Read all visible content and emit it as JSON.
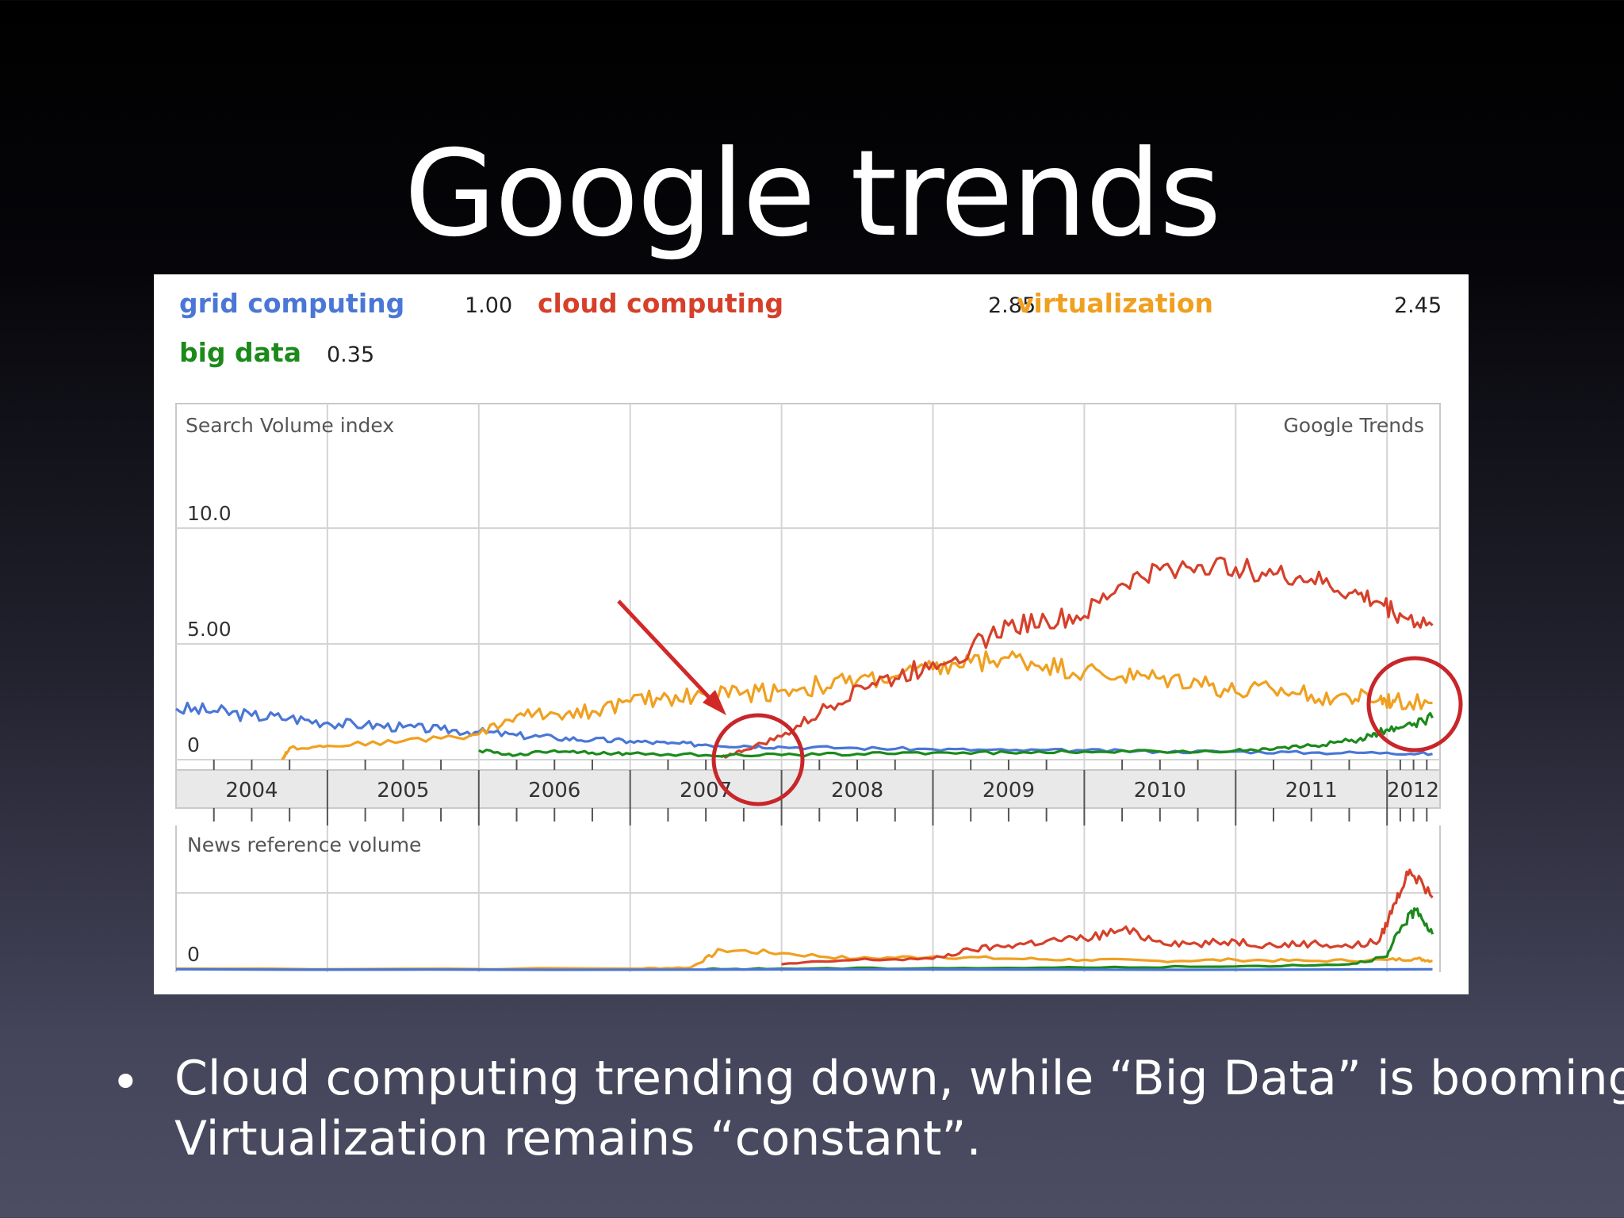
{
  "slide": {
    "title": "Google trends",
    "bullet_lines": [
      "Cloud computing trending down, while “Big Data” is booming.",
      "Virtualization remains “constant”."
    ]
  },
  "chart_data": {
    "type": "line",
    "source_label": "Google Trends",
    "legend": [
      {
        "name": "grid computing",
        "value": "1.00",
        "color": "#4a77d6"
      },
      {
        "name": "cloud computing",
        "value": "2.85",
        "color": "#d6402a"
      },
      {
        "name": "virtualization",
        "value": "2.45",
        "color": "#f0a020"
      },
      {
        "name": "big data",
        "value": "0.35",
        "color": "#1b8a1b"
      }
    ],
    "years": [
      "2004",
      "2005",
      "2006",
      "2007",
      "2008",
      "2009",
      "2010",
      "2011",
      "2012"
    ],
    "search_panel": {
      "label": "Search Volume index",
      "y_ticks": [
        {
          "value": 0,
          "label": "0"
        },
        {
          "value": 5,
          "label": "5.00"
        },
        {
          "value": 10,
          "label": "10.0"
        }
      ],
      "ylim": [
        0,
        15
      ],
      "x_range": [
        2004.0,
        2012.35
      ],
      "series": [
        {
          "name": "grid computing",
          "color": "#4a77d6",
          "x": [
            2004.0,
            2004.25,
            2004.5,
            2004.75,
            2005.0,
            2005.25,
            2005.5,
            2005.75,
            2006.0,
            2006.25,
            2006.5,
            2006.75,
            2007.0,
            2007.25,
            2007.5,
            2007.75,
            2008.0,
            2008.5,
            2009.0,
            2009.5,
            2010.0,
            2010.5,
            2011.0,
            2011.5,
            2012.0,
            2012.3
          ],
          "y": [
            2.2,
            2.1,
            1.9,
            1.8,
            1.6,
            1.5,
            1.4,
            1.3,
            1.2,
            1.05,
            0.95,
            0.85,
            0.8,
            0.7,
            0.65,
            0.6,
            0.55,
            0.5,
            0.45,
            0.4,
            0.4,
            0.35,
            0.35,
            0.3,
            0.3,
            0.25
          ]
        },
        {
          "name": "virtualization",
          "color": "#f0a020",
          "x": [
            2004.0,
            2004.7,
            2004.75,
            2005.0,
            2005.5,
            2006.0,
            2006.25,
            2006.5,
            2006.75,
            2007.0,
            2007.25,
            2007.5,
            2007.75,
            2008.0,
            2008.25,
            2008.5,
            2008.75,
            2009.0,
            2009.25,
            2009.5,
            2009.75,
            2010.0,
            2010.25,
            2010.5,
            2010.75,
            2011.0,
            2011.25,
            2011.5,
            2011.75,
            2011.95,
            2012.05,
            2012.3
          ],
          "y": [
            null,
            0.0,
            0.5,
            0.6,
            0.8,
            1.1,
            1.9,
            2.0,
            2.1,
            2.5,
            2.7,
            2.8,
            2.9,
            3.0,
            3.2,
            3.4,
            3.6,
            3.9,
            4.2,
            4.4,
            4.1,
            3.8,
            3.6,
            3.5,
            3.4,
            2.9,
            3.0,
            2.8,
            2.7,
            2.6,
            2.5,
            2.45
          ]
        },
        {
          "name": "cloud computing",
          "color": "#d6402a",
          "x": [
            2007.6,
            2007.75,
            2008.0,
            2008.25,
            2008.5,
            2008.75,
            2009.0,
            2009.25,
            2009.5,
            2009.75,
            2010.0,
            2010.25,
            2010.5,
            2010.75,
            2011.0,
            2011.25,
            2011.5,
            2011.75,
            2011.95,
            2012.1,
            2012.3
          ],
          "y": [
            0.1,
            0.4,
            1.0,
            2.0,
            3.2,
            3.5,
            4.2,
            4.8,
            5.8,
            6.0,
            6.2,
            7.6,
            8.2,
            8.4,
            8.3,
            8.0,
            7.8,
            7.2,
            6.8,
            6.2,
            5.8
          ]
        },
        {
          "name": "big data",
          "color": "#1b8a1b",
          "x": [
            2006.0,
            2006.25,
            2006.5,
            2006.75,
            2007.0,
            2007.5,
            2008.0,
            2008.5,
            2009.0,
            2009.5,
            2010.0,
            2010.5,
            2011.0,
            2011.25,
            2011.5,
            2011.75,
            2011.9,
            2012.0,
            2012.15,
            2012.3
          ],
          "y": [
            0.4,
            0.2,
            0.4,
            0.3,
            0.25,
            0.2,
            0.2,
            0.25,
            0.3,
            0.3,
            0.35,
            0.35,
            0.4,
            0.45,
            0.6,
            0.8,
            1.0,
            1.3,
            1.6,
            1.8
          ]
        }
      ]
    },
    "news_panel": {
      "label": "News reference volume",
      "y_ticks": [
        {
          "value": 0,
          "label": "0"
        }
      ],
      "ylim": [
        0,
        10
      ],
      "x_range": [
        2004.0,
        2012.35
      ],
      "series": [
        {
          "name": "virtualization",
          "color": "#f0a020",
          "x": [
            2004.0,
            2007.0,
            2007.4,
            2007.6,
            2008.0,
            2008.5,
            2009.0,
            2009.5,
            2010.0,
            2010.5,
            2011.0,
            2011.5,
            2012.0,
            2012.2,
            2012.3
          ],
          "y": [
            0.1,
            0.1,
            0.2,
            1.8,
            1.5,
            1.0,
            1.2,
            1.0,
            0.9,
            0.8,
            0.9,
            0.8,
            0.9,
            1.0,
            0.8
          ]
        },
        {
          "name": "cloud computing",
          "color": "#d6402a",
          "x": [
            2008.0,
            2008.5,
            2009.0,
            2009.25,
            2009.5,
            2009.75,
            2010.0,
            2010.25,
            2010.5,
            2010.75,
            2011.0,
            2011.25,
            2011.5,
            2011.75,
            2011.95,
            2012.05,
            2012.15,
            2012.3
          ],
          "y": [
            0.5,
            0.9,
            1.0,
            1.8,
            2.2,
            2.6,
            2.8,
            3.6,
            2.6,
            2.3,
            2.6,
            2.2,
            2.4,
            2.1,
            2.6,
            6.0,
            9.0,
            6.5
          ]
        },
        {
          "name": "big data",
          "color": "#1b8a1b",
          "x": [
            2007.5,
            2008.0,
            2009.0,
            2010.0,
            2011.0,
            2011.75,
            2012.0,
            2012.1,
            2012.2,
            2012.3
          ],
          "y": [
            0.05,
            0.1,
            0.15,
            0.2,
            0.3,
            0.5,
            1.2,
            4.0,
            5.5,
            3.2
          ]
        },
        {
          "name": "grid computing",
          "color": "#4a77d6",
          "x": [
            2004.0,
            2012.3
          ],
          "y": [
            0.05,
            0.05
          ]
        }
      ]
    }
  }
}
